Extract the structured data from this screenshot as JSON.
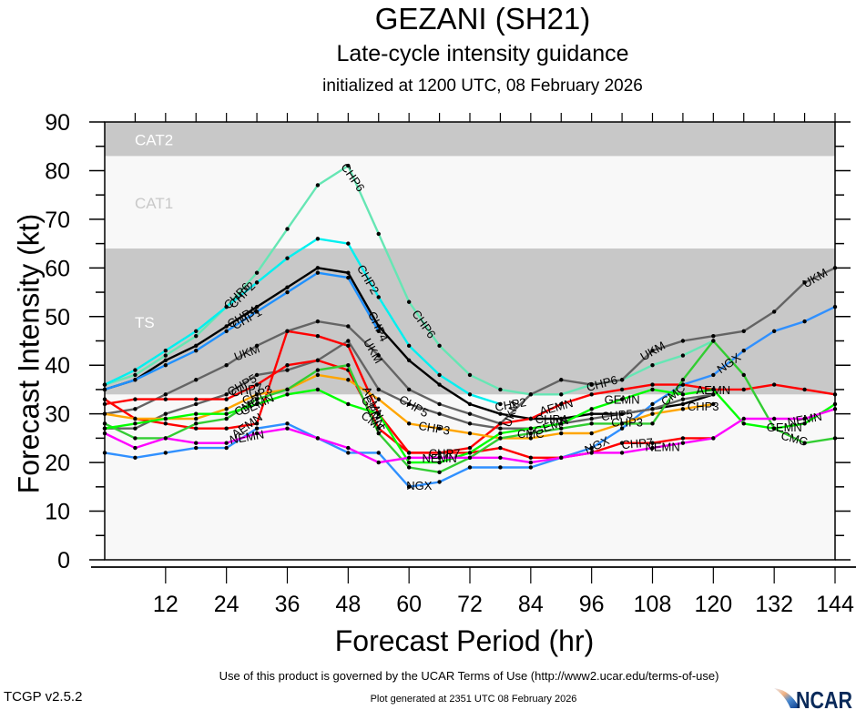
{
  "chart_data": {
    "type": "line",
    "title": "GEZANI (SH21)",
    "subtitle": "Late-cycle intensity guidance",
    "initialized": "initialized at 1200 UTC, 08 February 2026",
    "xlabel": "Forecast Period (hr)",
    "ylabel": "Forecast Intensity (kt)",
    "xlim": [
      0,
      144
    ],
    "ylim": [
      0,
      90
    ],
    "xticks": [
      12,
      24,
      36,
      48,
      60,
      72,
      84,
      96,
      108,
      120,
      132,
      144
    ],
    "yticks": [
      0,
      10,
      20,
      30,
      40,
      50,
      60,
      70,
      80,
      90
    ],
    "bands": [
      {
        "name": "TS",
        "from": 34,
        "to": 64,
        "color": "#c8c8c8",
        "label_color": "#ffffff"
      },
      {
        "name": "CAT1",
        "from": 64,
        "to": 83,
        "color": "#f8f8f8",
        "label_color": "#c8c8c8"
      },
      {
        "name": "CAT2",
        "from": 83,
        "to": 90,
        "color": "#c8c8c8",
        "label_color": "#ffffff"
      }
    ],
    "below_band_color": "#f8f8f8",
    "series": [
      {
        "name": "CHP6",
        "color": "#66e6b4",
        "x": [
          0,
          6,
          12,
          18,
          24,
          30,
          36,
          42,
          48,
          54,
          60,
          66,
          72,
          78,
          84,
          90,
          96,
          102,
          108,
          114,
          120
        ],
        "values": [
          36,
          38,
          42,
          46,
          52,
          59,
          68,
          77,
          81,
          67,
          53,
          44,
          38,
          35,
          34,
          34,
          36,
          37,
          40,
          42,
          45
        ],
        "labels": [
          {
            "at": 26,
            "angle": -45
          },
          {
            "at": 49,
            "angle": 55
          },
          {
            "at": 63,
            "angle": 55
          },
          {
            "at": 98,
            "angle": -15
          }
        ]
      },
      {
        "name": "CHP2",
        "color": "#00f0f0",
        "x": [
          0,
          6,
          12,
          18,
          24,
          30,
          36,
          42,
          48,
          54,
          60,
          66,
          72,
          78
        ],
        "values": [
          36,
          39,
          43,
          47,
          52,
          57,
          62,
          66,
          65,
          54,
          44,
          38,
          34,
          32
        ],
        "labels": [
          {
            "at": 27,
            "angle": -45
          },
          {
            "at": 52,
            "angle": 60
          },
          {
            "at": 80,
            "angle": -10
          }
        ]
      },
      {
        "name": "CHP4",
        "color": "#000000",
        "x": [
          0,
          6,
          12,
          18,
          24,
          30,
          36,
          42,
          48,
          54,
          60,
          66,
          72,
          78,
          84,
          90,
          96,
          102,
          108,
          114,
          120
        ],
        "values": [
          35,
          37,
          41,
          44,
          48,
          52,
          56,
          60,
          59,
          48,
          41,
          36,
          32,
          30,
          29,
          29,
          30,
          30,
          31,
          32,
          34
        ],
        "labels": [
          {
            "at": 27,
            "angle": -30
          },
          {
            "at": 54,
            "angle": 65
          },
          {
            "at": 88,
            "angle": 0
          }
        ]
      },
      {
        "name": "CHP1",
        "color": "#1e90ff",
        "x": [
          0,
          6,
          12,
          18,
          24,
          30,
          36,
          42,
          48,
          54
        ],
        "values": [
          35,
          37,
          40,
          43,
          47,
          51,
          55,
          59,
          58,
          47
        ],
        "labels": [
          {
            "at": 28,
            "angle": -30
          }
        ]
      },
      {
        "name": "NGX",
        "color": "#3090ff",
        "x": [
          0,
          6,
          12,
          18,
          24,
          30,
          36,
          42,
          48,
          54,
          60,
          66,
          72,
          78,
          84,
          90,
          96,
          102,
          108,
          114,
          120,
          126,
          132,
          138,
          144
        ],
        "values": [
          22,
          21,
          22,
          23,
          23,
          27,
          28,
          25,
          22,
          22,
          15,
          16,
          19,
          19,
          19,
          21,
          23,
          27,
          32,
          36,
          38,
          43,
          47,
          49,
          52
        ],
        "labels": [
          {
            "at": 62,
            "angle": 0
          },
          {
            "at": 97,
            "angle": -25
          },
          {
            "at": 123,
            "angle": -35
          }
        ]
      },
      {
        "name": "UKM",
        "color": "#646464",
        "x": [
          0,
          6,
          12,
          18,
          24,
          30,
          36,
          42,
          48,
          54,
          60,
          66,
          72,
          78,
          84,
          90,
          96,
          102,
          108,
          114,
          120,
          126,
          132,
          138,
          144
        ],
        "values": [
          30,
          31,
          34,
          37,
          40,
          44,
          47,
          49,
          48,
          42,
          35,
          32,
          30,
          28,
          34,
          37,
          36,
          37,
          43,
          45,
          46,
          47,
          51,
          57,
          60
        ],
        "labels": [
          {
            "at": 28,
            "angle": -20
          },
          {
            "at": 53,
            "angle": 60
          },
          {
            "at": 80,
            "angle": -70
          },
          {
            "at": 108,
            "angle": -30
          },
          {
            "at": 140,
            "angle": -30
          }
        ]
      },
      {
        "name": "CHP5",
        "color": "#646464",
        "x": [
          0,
          6,
          12,
          18,
          24,
          30,
          36,
          42,
          48,
          54,
          60,
          66,
          72,
          78,
          84,
          90,
          96,
          102,
          108,
          114,
          120
        ],
        "values": [
          27,
          27,
          30,
          32,
          34,
          38,
          39,
          41,
          45,
          35,
          32,
          30,
          28,
          27,
          27,
          28,
          29,
          30,
          31,
          33,
          34
        ],
        "labels": [
          {
            "at": 27,
            "angle": -30
          },
          {
            "at": 61,
            "angle": 30
          },
          {
            "at": 101,
            "angle": -5
          }
        ]
      },
      {
        "name": "AEMN",
        "color": "#ff0000",
        "x": [
          0,
          6,
          12,
          18,
          24,
          30,
          36,
          42,
          48,
          54,
          60,
          66,
          72,
          78,
          84,
          90,
          96,
          102,
          108,
          114,
          120,
          126,
          132,
          138,
          144
        ],
        "values": [
          33,
          29,
          28,
          27,
          27,
          28,
          47,
          46,
          44,
          30,
          22,
          22,
          23,
          28,
          29,
          32,
          34,
          35,
          36,
          36,
          35,
          35,
          36,
          35,
          34
        ],
        "labels": [
          {
            "at": 28,
            "angle": -35
          },
          {
            "at": 53,
            "angle": 65
          },
          {
            "at": 89,
            "angle": -15
          },
          {
            "at": 120,
            "angle": 0
          }
        ]
      },
      {
        "name": "CHP7",
        "color": "#ff0000",
        "x": [
          0,
          6,
          12,
          18,
          24,
          30,
          36,
          42,
          48,
          54,
          60,
          66,
          72,
          78,
          84,
          90,
          96,
          102,
          108,
          114,
          120
        ],
        "values": [
          32,
          33,
          33,
          33,
          33,
          36,
          40,
          41,
          39,
          27,
          22,
          22,
          22,
          23,
          21,
          21,
          22,
          24,
          24,
          25,
          25
        ],
        "labels": [
          {
            "at": 28,
            "angle": -10
          },
          {
            "at": 67,
            "angle": 0
          },
          {
            "at": 105,
            "angle": -5
          }
        ]
      },
      {
        "name": "CHP3",
        "color": "#ffa500",
        "x": [
          0,
          6,
          12,
          18,
          24,
          30,
          36,
          42,
          48,
          54,
          60,
          66,
          72,
          78,
          84,
          90,
          96,
          102,
          108,
          114,
          120
        ],
        "values": [
          30,
          29,
          29,
          29,
          31,
          34,
          35,
          38,
          37,
          33,
          28,
          27,
          26,
          25,
          25,
          26,
          26,
          28,
          30,
          31,
          32
        ],
        "labels": [
          {
            "at": 30,
            "angle": -25
          },
          {
            "at": 65,
            "angle": 10
          },
          {
            "at": 103,
            "angle": 0
          },
          {
            "at": 118,
            "angle": 0
          }
        ]
      },
      {
        "name": "CMC",
        "color": "#32cd32",
        "x": [
          0,
          6,
          12,
          18,
          24,
          30,
          36,
          42,
          48,
          54,
          60,
          66,
          72,
          78,
          84,
          90,
          96,
          102,
          108,
          114,
          120,
          126,
          132,
          138,
          144
        ],
        "values": [
          28,
          25,
          25,
          28,
          29,
          33,
          35,
          39,
          40,
          26,
          19,
          18,
          21,
          25,
          26,
          27,
          28,
          28,
          28,
          37,
          45,
          38,
          27,
          24,
          25
        ],
        "labels": [
          {
            "at": 28,
            "angle": -30
          },
          {
            "at": 53,
            "angle": 40
          },
          {
            "at": 84,
            "angle": 0
          },
          {
            "at": 112,
            "angle": -40
          },
          {
            "at": 136,
            "angle": 15
          }
        ]
      },
      {
        "name": "GEMN",
        "color": "#00ff00",
        "x": [
          0,
          6,
          12,
          18,
          24,
          30,
          36,
          42,
          48,
          54,
          60,
          66,
          72,
          78,
          84,
          90,
          96,
          102,
          108,
          114,
          120,
          126,
          132,
          138,
          144
        ],
        "values": [
          27,
          28,
          29,
          30,
          30,
          32,
          34,
          35,
          32,
          30,
          20,
          20,
          22,
          26,
          27,
          28,
          31,
          33,
          35,
          34,
          35,
          28,
          27,
          28,
          32
        ],
        "labels": [
          {
            "at": 30,
            "angle": -25
          },
          {
            "at": 53,
            "angle": 60
          },
          {
            "at": 88,
            "angle": -20
          },
          {
            "at": 102,
            "angle": 0
          },
          {
            "at": 134,
            "angle": 0
          }
        ]
      },
      {
        "name": "NEMN",
        "color": "#ff00ff",
        "x": [
          0,
          6,
          12,
          18,
          24,
          30,
          36,
          42,
          48,
          54,
          60,
          66,
          72,
          78,
          84,
          90,
          96,
          102,
          108,
          114,
          120,
          126,
          132,
          138,
          144
        ],
        "values": [
          26,
          23,
          25,
          24,
          24,
          26,
          27,
          25,
          23,
          20,
          21,
          21,
          21,
          21,
          20,
          21,
          22,
          22,
          23,
          24,
          25,
          29,
          29,
          29,
          31
        ],
        "labels": [
          {
            "at": 28,
            "angle": -10
          },
          {
            "at": 66,
            "angle": 0
          },
          {
            "at": 110,
            "angle": 0
          },
          {
            "at": 138,
            "angle": -10
          }
        ]
      }
    ]
  },
  "footer": {
    "terms": "Use of this product is governed by the UCAR Terms of Use (http://www2.ucar.edu/terms-of-use)",
    "version": "TCGP v2.5.2",
    "generated": "Plot generated at 2351 UTC   08 February 2026",
    "logo_text": "NCAR"
  }
}
